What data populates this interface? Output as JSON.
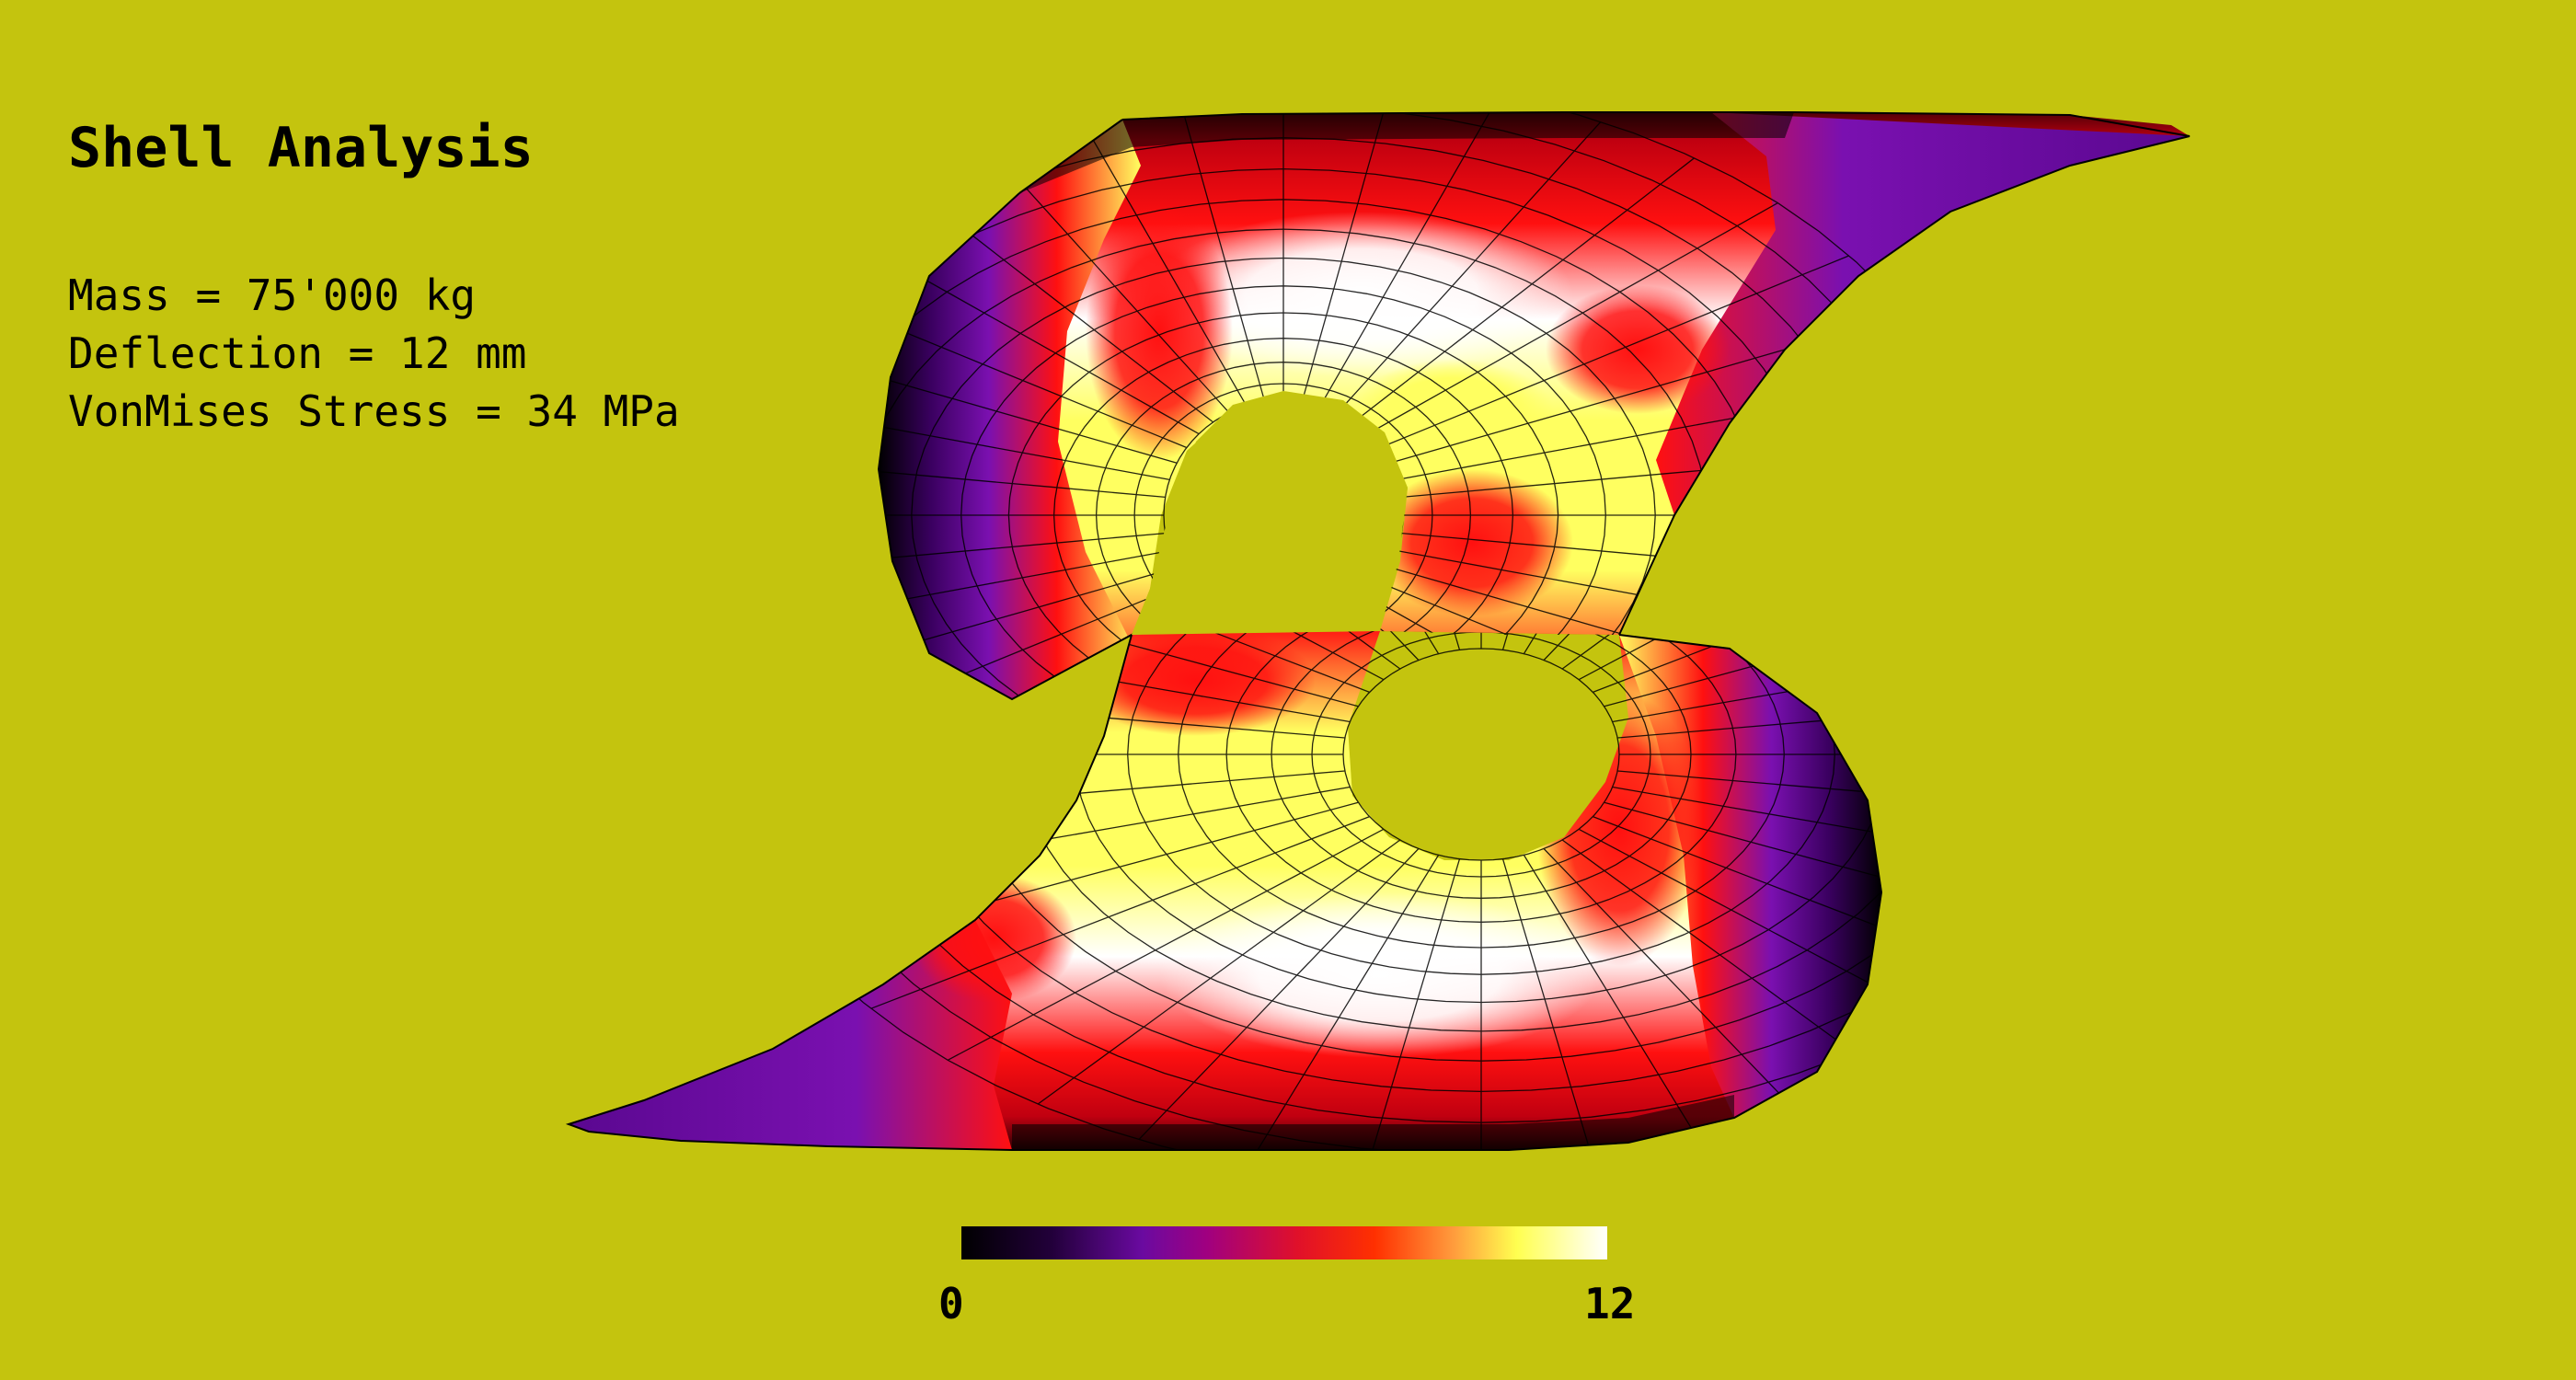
{
  "title": "Shell Analysis",
  "stats": {
    "mass": "Mass = 75'000 kg",
    "deflection": "Deflection = 12 mm",
    "stress": "VonMises Stress = 34 MPa"
  },
  "legend": {
    "min_label": "0",
    "max_label": "12",
    "min_value": 0,
    "max_value": 12,
    "colormap": [
      "#000000",
      "#6a0aa0",
      "#e0102a",
      "#ff3000",
      "#ffff50",
      "#ffffff"
    ]
  },
  "colors": {
    "background": "#c4c40e",
    "mesh_line": "#000000"
  }
}
